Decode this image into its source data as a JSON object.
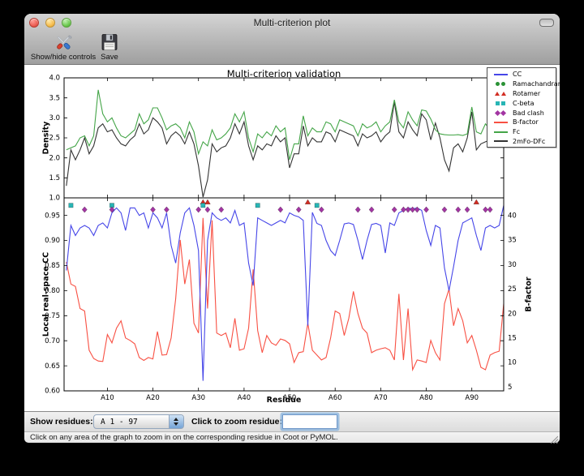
{
  "window": {
    "title": "Multi-criterion plot"
  },
  "toolbar": {
    "show_hide_label": "Show/hide controls",
    "save_label": "Save"
  },
  "plot": {
    "title": "Multi-criterion validation",
    "top_ylabel": "Density",
    "bottom_ylabel": "Local real-space CC",
    "right_ylabel": "B-factor",
    "xlabel": "Residue"
  },
  "legend": {
    "items": [
      {
        "label": "CC",
        "glyph": "line",
        "color": "#4646e8"
      },
      {
        "label": "Ramachandran",
        "glyph": "circle",
        "color": "#2a9235"
      },
      {
        "label": "Rotamer",
        "glyph": "triangle",
        "color": "#d22d23"
      },
      {
        "label": "C-beta",
        "glyph": "square",
        "color": "#28b5b5"
      },
      {
        "label": "Bad clash",
        "glyph": "diamond",
        "color": "#a235a2"
      },
      {
        "label": "B-factor",
        "glyph": "line",
        "color": "#f85043"
      },
      {
        "label": "Fc",
        "glyph": "line",
        "color": "#44a548"
      },
      {
        "label": "2mFo-DFc",
        "glyph": "line",
        "color": "#333333"
      }
    ]
  },
  "controls": {
    "show_residues_label": "Show residues:",
    "range_value": "A  1 - 97",
    "zoom_label": "Click to zoom residue:",
    "zoom_value": ""
  },
  "status_bar": {
    "text": "Click on any area of the graph to zoom in on the corresponding residue in Coot or PyMOL."
  },
  "chart_data": [
    {
      "type": "line",
      "title": "Multi-criterion validation",
      "ylabel": "Density",
      "ylim": [
        1.0,
        4.0
      ],
      "ytick_values": [
        1.0,
        1.5,
        2.0,
        2.5,
        3.0,
        3.5,
        4.0
      ],
      "ytick_labels": [
        "1.0",
        "1.5",
        "2.0",
        "2.5",
        "3.0",
        "3.5",
        "4.0"
      ],
      "x_start": 1,
      "series": [
        {
          "name": "2mFo-DFc",
          "color": "#333333",
          "values": [
            1.3,
            2.2,
            1.95,
            2.2,
            2.5,
            2.1,
            2.3,
            2.75,
            2.85,
            2.65,
            2.7,
            2.5,
            2.35,
            2.3,
            2.45,
            2.55,
            2.85,
            2.6,
            2.7,
            3.0,
            2.9,
            2.75,
            2.35,
            2.55,
            2.65,
            2.55,
            2.35,
            2.65,
            2.35,
            1.8,
            1.02,
            1.45,
            2.35,
            2.15,
            2.25,
            2.3,
            2.5,
            2.85,
            2.6,
            2.9,
            2.3,
            1.95,
            2.3,
            2.2,
            2.35,
            2.3,
            2.55,
            2.4,
            2.5,
            1.75,
            2.1,
            2.1,
            2.8,
            2.3,
            2.5,
            2.4,
            2.4,
            2.65,
            2.6,
            2.4,
            2.7,
            2.65,
            2.6,
            2.55,
            2.3,
            2.6,
            2.5,
            2.55,
            2.65,
            2.4,
            2.55,
            2.65,
            3.4,
            2.65,
            2.5,
            2.9,
            2.7,
            2.55,
            3.1,
            2.95,
            2.45,
            2.87,
            2.5,
            1.95,
            1.67,
            2.25,
            2.35,
            2.15,
            2.5,
            3.15,
            2.2,
            2.35,
            2.4,
            2.45,
            2.4,
            3.3,
            3.4
          ]
        },
        {
          "name": "Fc",
          "color": "#44a548",
          "values": [
            2.2,
            2.25,
            2.3,
            2.5,
            2.55,
            2.3,
            2.55,
            3.7,
            3.1,
            2.9,
            3.0,
            2.75,
            2.55,
            2.5,
            2.6,
            2.7,
            3.1,
            2.85,
            2.95,
            3.25,
            3.25,
            3.0,
            2.7,
            2.8,
            2.85,
            2.75,
            2.5,
            2.9,
            2.65,
            2.1,
            2.4,
            2.3,
            2.7,
            2.45,
            2.5,
            2.6,
            2.75,
            3.1,
            2.9,
            3.15,
            2.5,
            2.15,
            2.6,
            2.5,
            2.65,
            2.55,
            2.8,
            2.65,
            2.75,
            1.95,
            2.35,
            2.35,
            3.05,
            2.55,
            2.75,
            2.65,
            2.65,
            2.9,
            2.85,
            2.65,
            2.95,
            2.9,
            2.85,
            2.8,
            2.55,
            2.85,
            2.75,
            2.8,
            2.9,
            2.65,
            2.8,
            2.9,
            3.45,
            2.9,
            2.75,
            3.15,
            2.95,
            2.8,
            3.2,
            3.17,
            2.97,
            2.7,
            2.6,
            2.58,
            2.57,
            2.57,
            2.58,
            2.56,
            2.6,
            3.27,
            2.65,
            2.6,
            2.85,
            2.7,
            2.9,
            3.5,
            3.55
          ]
        }
      ]
    },
    {
      "type": "line+markers",
      "ylabel": "Local real-space CC",
      "y2label": "B-factor",
      "xlabel": "Residue",
      "xlim": [
        0.5,
        97
      ],
      "ylim": [
        0.6,
        0.985
      ],
      "y2lim": [
        4.2,
        43.6
      ],
      "ytick_values": [
        0.6,
        0.65,
        0.7,
        0.75,
        0.8,
        0.85,
        0.9,
        0.95
      ],
      "ytick_labels": [
        "0.60",
        "0.65",
        "0.70",
        "0.75",
        "0.80",
        "0.85",
        "0.90",
        "0.95"
      ],
      "y2tick_values": [
        5,
        10,
        15,
        20,
        25,
        30,
        35,
        40
      ],
      "y2tick_labels": [
        "5",
        "10",
        "15",
        "20",
        "25",
        "30",
        "35",
        "40"
      ],
      "xtick_values": [
        10,
        20,
        30,
        40,
        50,
        60,
        70,
        80,
        90
      ],
      "xtick_labels": [
        "A10",
        "A20",
        "A30",
        "A40",
        "A50",
        "A60",
        "A70",
        "A80",
        "A90"
      ],
      "x_start": 1,
      "series": [
        {
          "name": "B-factor",
          "axis": "right",
          "color": "#f85043",
          "values": [
            30.5,
            26.0,
            25.5,
            21.0,
            20.5,
            12.5,
            10.8,
            10.3,
            10.2,
            15.7,
            14.0,
            17.0,
            18.5,
            15.0,
            14.5,
            13.8,
            11.0,
            10.4,
            11.0,
            10.7,
            16.3,
            11.5,
            11.6,
            15.0,
            23.0,
            35.0,
            26.0,
            31.0,
            18.0,
            16.0,
            39.5,
            21.0,
            39.0,
            16.0,
            15.5,
            16.0,
            13.0,
            19.0,
            12.5,
            12.8,
            17.0,
            29.0,
            16.5,
            12.0,
            15.5,
            14.0,
            13.5,
            14.8,
            14.5,
            13.8,
            10.0,
            12.0,
            12.2,
            18.0,
            12.5,
            11.5,
            10.5,
            11.0,
            15.0,
            20.5,
            20.0,
            15.5,
            19.0,
            24.5,
            20.0,
            17.0,
            16.0,
            12.0,
            12.5,
            12.8,
            13.0,
            12.5,
            10.5,
            24.0,
            10.5,
            21.0,
            8.5,
            10.5,
            10.3,
            10.0,
            14.5,
            12.0,
            10.5,
            22.0,
            25.0,
            17.5,
            21.0,
            18.5,
            14.0,
            15.5,
            12.5,
            9.0,
            8.5,
            11.5,
            12.0,
            12.3,
            22.0
          ]
        },
        {
          "name": "CC",
          "axis": "left",
          "color": "#4646e8",
          "values": [
            0.84,
            0.93,
            0.91,
            0.925,
            0.93,
            0.925,
            0.91,
            0.93,
            0.935,
            0.925,
            0.955,
            0.965,
            0.955,
            0.92,
            0.965,
            0.965,
            0.95,
            0.955,
            0.925,
            0.955,
            0.945,
            0.925,
            0.955,
            0.89,
            0.855,
            0.915,
            0.955,
            0.965,
            0.93,
            0.88,
            0.62,
            0.9,
            0.955,
            0.945,
            0.94,
            0.945,
            0.935,
            0.96,
            0.93,
            0.935,
            0.855,
            0.81,
            0.945,
            0.94,
            0.935,
            0.93,
            0.935,
            0.94,
            0.935,
            0.955,
            0.95,
            0.947,
            0.94,
            0.73,
            0.956,
            0.934,
            0.93,
            0.9,
            0.88,
            0.87,
            0.9,
            0.933,
            0.935,
            0.932,
            0.9,
            0.862,
            0.9,
            0.932,
            0.934,
            0.93,
            0.875,
            0.935,
            0.93,
            0.955,
            0.96,
            0.965,
            0.963,
            0.965,
            0.96,
            0.92,
            0.89,
            0.93,
            0.925,
            0.845,
            0.8,
            0.848,
            0.9,
            0.935,
            0.94,
            0.945,
            0.91,
            0.88,
            0.925,
            0.93,
            0.925,
            0.93,
            0.97
          ]
        }
      ],
      "markers": [
        {
          "name": "Rotamer",
          "shape": "triangle",
          "color": "#d22d23",
          "y": 0.9765,
          "residues": [
            31,
            32,
            54,
            91
          ]
        },
        {
          "name": "Ramachandran",
          "shape": "circle",
          "color": "#2a9235",
          "y": 0.966,
          "residues": []
        },
        {
          "name": "C-beta",
          "shape": "square",
          "color": "#28b5b5",
          "y": 0.97,
          "residues": [
            2,
            11,
            31,
            43,
            56
          ]
        },
        {
          "name": "Bad clash",
          "shape": "diamond",
          "color": "#a235a2",
          "y": 0.9615,
          "residues": [
            5,
            11,
            20,
            23,
            30,
            32,
            35,
            48,
            52,
            57,
            65,
            68,
            73,
            75,
            76,
            77,
            78,
            80,
            84,
            87,
            89,
            93,
            94
          ]
        }
      ]
    }
  ]
}
